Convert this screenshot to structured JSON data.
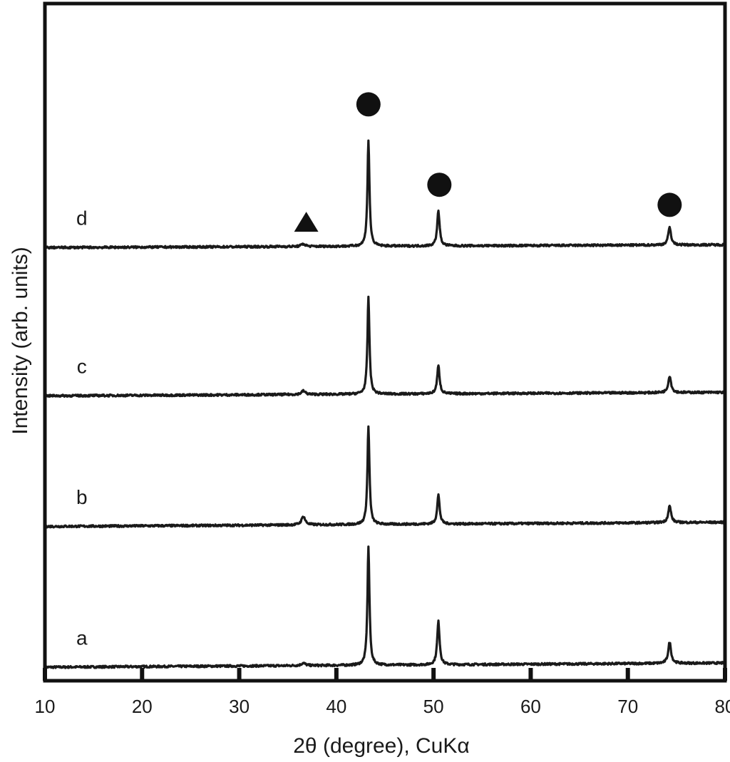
{
  "chart_data": {
    "type": "line",
    "title": "",
    "xlabel": "2θ (degree), CuKα",
    "ylabel": "Intensity (arb. units)",
    "xlim": [
      10,
      80
    ],
    "xticks": [
      10,
      20,
      30,
      40,
      50,
      60,
      70,
      80
    ],
    "xtick_labels": [
      "10",
      "20",
      "30",
      "40",
      "50",
      "60",
      "70",
      "80"
    ],
    "y_scale": "arbitrary, traces vertically offset",
    "grid": false,
    "series": [
      {
        "label": "a",
        "baseline": 0.0,
        "slope": 0.012,
        "peaks": [
          {
            "x": 36.6,
            "height": 0.05,
            "width": 0.5
          },
          {
            "x": 43.3,
            "height": 2.35,
            "width": 0.25
          },
          {
            "x": 50.5,
            "height": 0.86,
            "width": 0.3
          },
          {
            "x": 74.3,
            "height": 0.42,
            "width": 0.35
          }
        ]
      },
      {
        "label": "b",
        "baseline": 2.8,
        "slope": 0.012,
        "peaks": [
          {
            "x": 36.6,
            "height": 0.17,
            "width": 0.45
          },
          {
            "x": 43.3,
            "height": 1.95,
            "width": 0.25
          },
          {
            "x": 50.5,
            "height": 0.58,
            "width": 0.3
          },
          {
            "x": 74.3,
            "height": 0.33,
            "width": 0.35
          }
        ]
      },
      {
        "label": "c",
        "baseline": 5.4,
        "slope": 0.01,
        "peaks": [
          {
            "x": 36.6,
            "height": 0.07,
            "width": 0.5
          },
          {
            "x": 43.3,
            "height": 1.92,
            "width": 0.25
          },
          {
            "x": 50.5,
            "height": 0.56,
            "width": 0.3
          },
          {
            "x": 74.3,
            "height": 0.33,
            "width": 0.35
          }
        ]
      },
      {
        "label": "d",
        "baseline": 8.35,
        "slope": 0.008,
        "peaks": [
          {
            "x": 36.6,
            "height": 0.05,
            "width": 0.5
          },
          {
            "x": 43.3,
            "height": 2.1,
            "width": 0.25
          },
          {
            "x": 50.5,
            "height": 0.7,
            "width": 0.3
          },
          {
            "x": 74.3,
            "height": 0.35,
            "width": 0.35
          }
        ]
      }
    ],
    "markers": [
      {
        "shape": "triangle",
        "x": 36.9,
        "y": 8.85,
        "color": "#111111"
      },
      {
        "shape": "circle",
        "x": 43.3,
        "y": 11.2,
        "color": "#111111"
      },
      {
        "shape": "circle",
        "x": 50.6,
        "y": 9.6,
        "color": "#111111"
      },
      {
        "shape": "circle",
        "x": 74.3,
        "y": 9.2,
        "color": "#111111"
      }
    ],
    "line_color": "#1a1a1a"
  }
}
